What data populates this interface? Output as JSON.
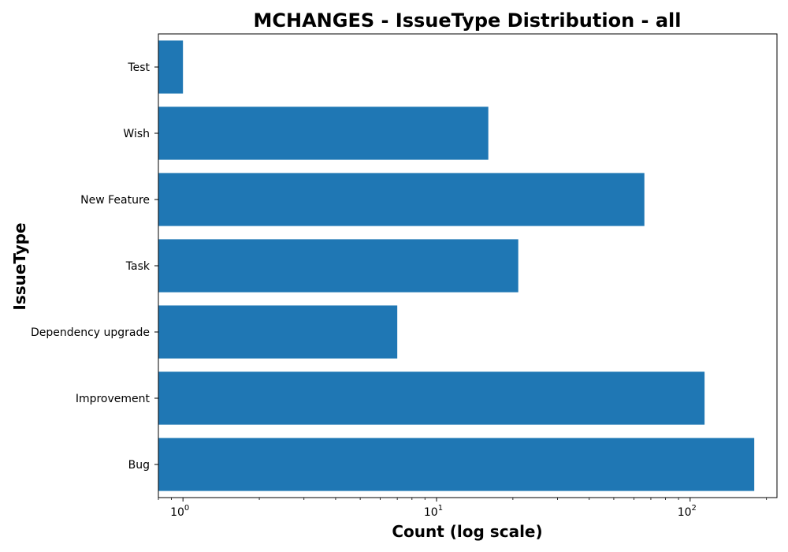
{
  "chart_data": {
    "type": "bar",
    "orientation": "horizontal",
    "title": "MCHANGES - IssueType Distribution - all",
    "xlabel": "Count (log scale)",
    "ylabel": "IssueType",
    "x_scale": "log",
    "xlim": [
      0.8,
      220
    ],
    "xticks": [
      {
        "base": "10",
        "exp": "0",
        "value": 1
      },
      {
        "base": "10",
        "exp": "1",
        "value": 10
      },
      {
        "base": "10",
        "exp": "2",
        "value": 100
      }
    ],
    "categories": [
      "Bug",
      "Improvement",
      "Dependency upgrade",
      "Task",
      "New Feature",
      "Wish",
      "Test"
    ],
    "values": [
      179,
      114,
      7,
      21,
      66,
      16,
      1
    ],
    "bar_color": "#1f77b4",
    "grid": false,
    "legend": false
  }
}
